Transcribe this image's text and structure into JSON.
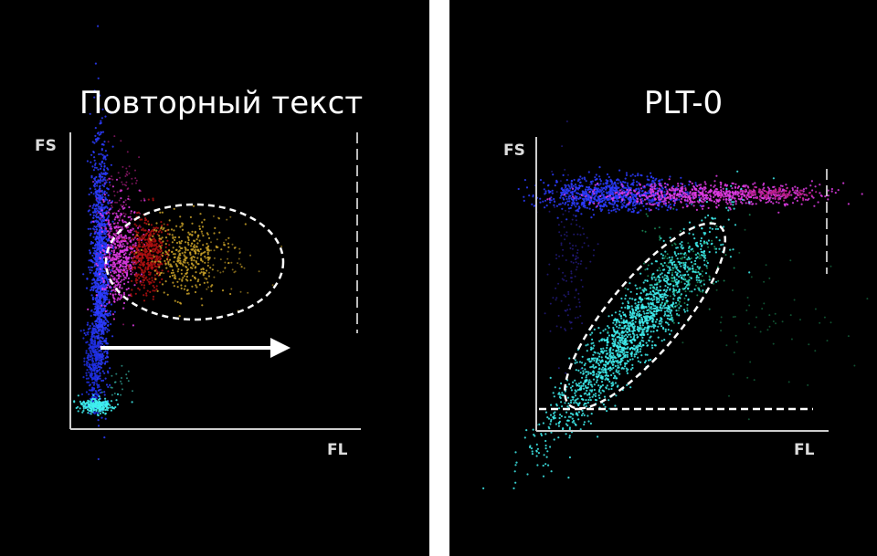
{
  "panels": [
    {
      "title": "Повторный текст",
      "y_label": "FS",
      "x_label": "FL"
    },
    {
      "title": "PLT-0",
      "y_label": "FS",
      "x_label": "FL"
    }
  ]
}
